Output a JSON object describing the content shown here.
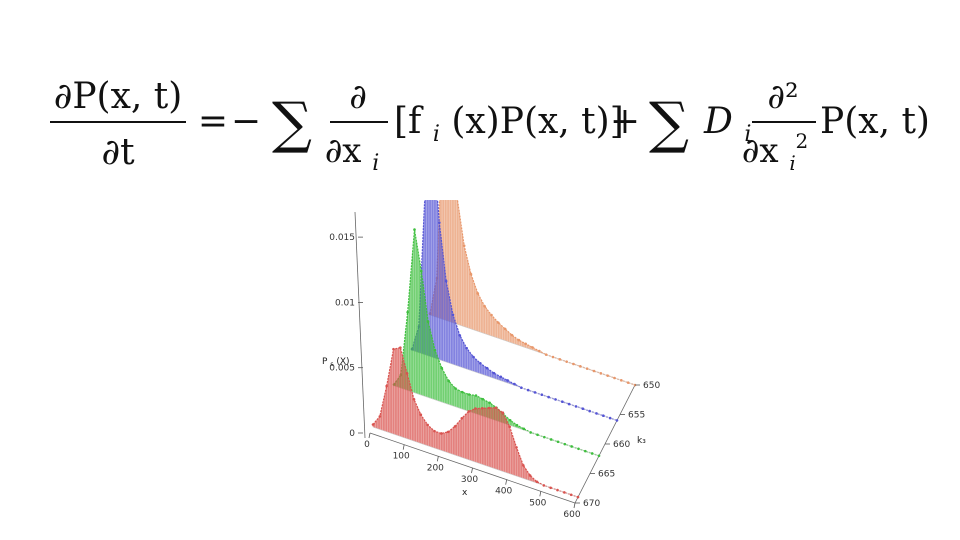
{
  "equation": {
    "lhs_numerator": "∂P(x, t)",
    "lhs_denominator": "∂t",
    "equals": "=",
    "term1_sign": "−",
    "term1_sum": "∑",
    "term1_numerator": "∂",
    "term1_denominator": "∂x",
    "term1_denominator_sub": "i",
    "term1_body": "[f",
    "term1_body_sub": "i",
    "term1_body_rest": "(x)P(x, t)]",
    "term2_sign": "+",
    "term2_sum": "∑",
    "term2_coef": "D",
    "term2_coef_sub": "i",
    "term2_numerator": "∂²",
    "term2_denominator": "∂x",
    "term2_denominator_sub": "i",
    "term2_denominator_sup": "2",
    "term2_body": "P(x, t)"
  },
  "chart_data": {
    "type": "line",
    "style": "3d-waterfall",
    "xlabel": "x",
    "ylabel": "k₃",
    "zlabel": "P_s(X)",
    "zlabel_main": "P",
    "zlabel_sub": "s",
    "zlabel_rest": "(X)",
    "x_ticks": [
      "0",
      "100",
      "200",
      "300",
      "400",
      "500",
      "600"
    ],
    "y_ticks": [
      "650",
      "655",
      "660",
      "665",
      "670"
    ],
    "z_ticks": [
      "0",
      "0.005",
      "0.01",
      "0.015"
    ],
    "xlim": [
      0,
      600
    ],
    "ylim": [
      650,
      670
    ],
    "zlim": [
      0,
      0.017
    ],
    "x": [
      0,
      20,
      40,
      60,
      80,
      100,
      120,
      140,
      160,
      180,
      200,
      220,
      240,
      260,
      280,
      300,
      320,
      340,
      360,
      380,
      400,
      420,
      440,
      460,
      480,
      500,
      520,
      540,
      560,
      580,
      600
    ],
    "series": [
      {
        "k3": 669,
        "color": "#d9534f",
        "values": [
          0.0002,
          0.001,
          0.0035,
          0.0065,
          0.0068,
          0.005,
          0.0032,
          0.0022,
          0.0016,
          0.0013,
          0.0013,
          0.0016,
          0.0022,
          0.003,
          0.0037,
          0.0041,
          0.0043,
          0.0045,
          0.0047,
          0.0045,
          0.0036,
          0.0022,
          0.001,
          0.0004,
          0.0001,
          0,
          0,
          0,
          0,
          0,
          0
        ]
      },
      {
        "k3": 662,
        "color": "#3fbf3f",
        "values": [
          0.0001,
          0.001,
          0.006,
          0.0125,
          0.0095,
          0.0058,
          0.0038,
          0.0026,
          0.0018,
          0.0014,
          0.0013,
          0.0013,
          0.0014,
          0.0013,
          0.0012,
          0.001,
          0.0007,
          0.0004,
          0.0002,
          0.0001,
          0,
          0,
          0,
          0,
          0,
          0,
          0,
          0,
          0,
          0,
          0
        ]
      },
      {
        "k3": 656,
        "color": "#5555d5",
        "values": [
          0.0001,
          0.002,
          0.0135,
          0.0168,
          0.0105,
          0.0062,
          0.0038,
          0.0024,
          0.0016,
          0.0011,
          0.0008,
          0.0006,
          0.0004,
          0.0003,
          0.0002,
          0.0001,
          0,
          0,
          0,
          0,
          0,
          0,
          0,
          0,
          0,
          0,
          0,
          0,
          0,
          0,
          0
        ]
      },
      {
        "k3": 650,
        "color": "#e8976b",
        "values": [
          0.0001,
          0.003,
          0.0177,
          0.0148,
          0.0096,
          0.0062,
          0.0042,
          0.0029,
          0.0021,
          0.0016,
          0.0012,
          0.0009,
          0.0006,
          0.0004,
          0.0003,
          0.0002,
          0.0001,
          0,
          0,
          0,
          0,
          0,
          0,
          0,
          0,
          0,
          0,
          0,
          0,
          0,
          0
        ]
      }
    ],
    "grid": false,
    "legend": false
  }
}
